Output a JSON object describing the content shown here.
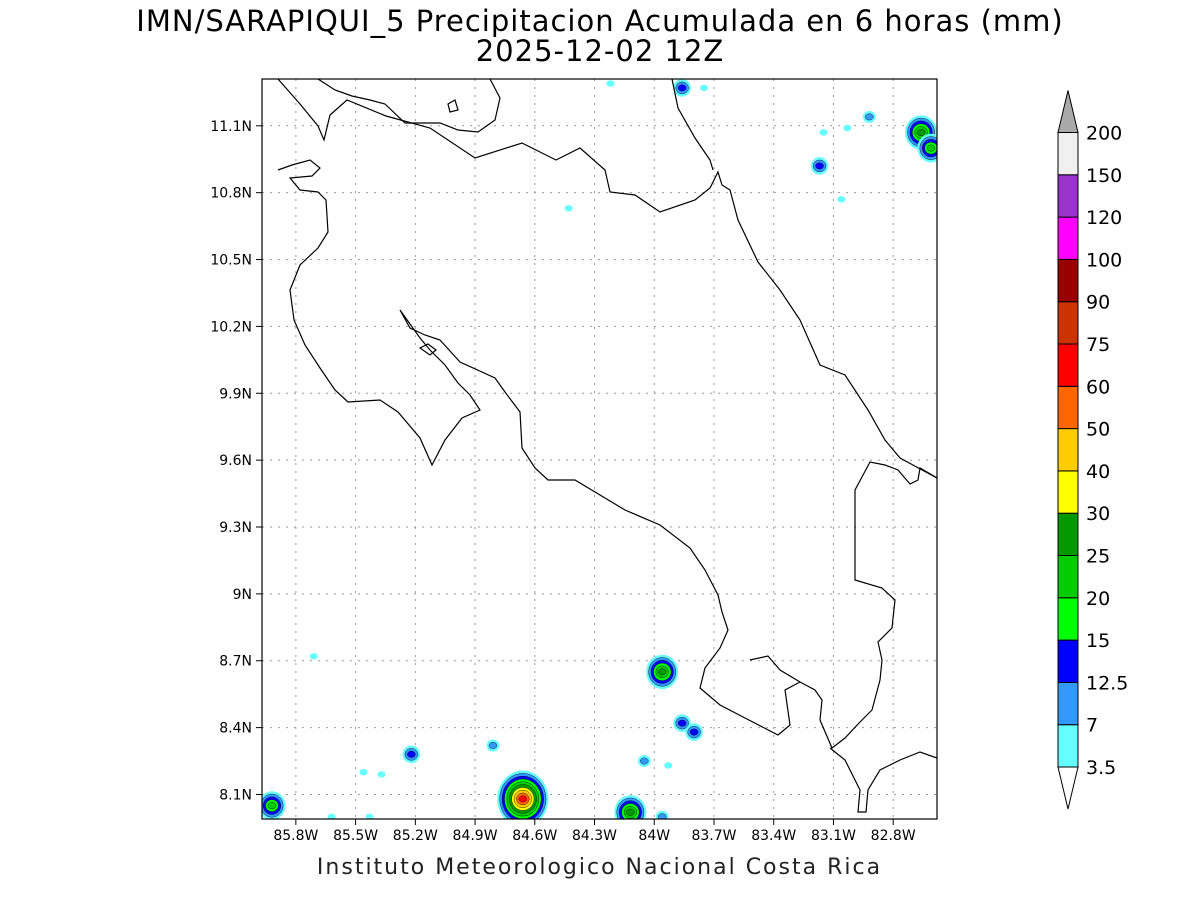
{
  "map": {
    "title": "IMN/SARAPIQUI_5 Precipitacion Acumulada en 6 horas (mm)",
    "subtitle": "2025-12-02 12Z",
    "footer": "Instituto Meteorologico Nacional Costa Rica",
    "lon_range": [
      -85.97,
      -82.58
    ],
    "lat_range": [
      7.99,
      11.31
    ],
    "x_ticks": [
      {
        "lon": -85.8,
        "label": "85.8W"
      },
      {
        "lon": -85.5,
        "label": "85.5W"
      },
      {
        "lon": -85.2,
        "label": "85.2W"
      },
      {
        "lon": -84.9,
        "label": "84.9W"
      },
      {
        "lon": -84.6,
        "label": "84.6W"
      },
      {
        "lon": -84.3,
        "label": "84.3W"
      },
      {
        "lon": -84.0,
        "label": "84W"
      },
      {
        "lon": -83.7,
        "label": "83.7W"
      },
      {
        "lon": -83.4,
        "label": "83.4W"
      },
      {
        "lon": -83.1,
        "label": "83.1W"
      },
      {
        "lon": -82.8,
        "label": "82.8W"
      }
    ],
    "y_ticks": [
      {
        "lat": 11.1,
        "label": "11.1N"
      },
      {
        "lat": 10.8,
        "label": "10.8N"
      },
      {
        "lat": 10.5,
        "label": "10.5N"
      },
      {
        "lat": 10.2,
        "label": "10.2N"
      },
      {
        "lat": 9.9,
        "label": "9.9N"
      },
      {
        "lat": 9.6,
        "label": "9.6N"
      },
      {
        "lat": 9.3,
        "label": "9.3N"
      },
      {
        "lat": 9.0,
        "label": "9N"
      },
      {
        "lat": 8.7,
        "label": "8.7N"
      },
      {
        "lat": 8.4,
        "label": "8.4N"
      },
      {
        "lat": 8.1,
        "label": "8.1N"
      }
    ],
    "grid": true
  },
  "colorbar": {
    "levels": [
      {
        "label": "3.5",
        "color": "#66ffff"
      },
      {
        "label": "7",
        "color": "#3399ff"
      },
      {
        "label": "12.5",
        "color": "#0000ff"
      },
      {
        "label": "15",
        "color": "#00ff00"
      },
      {
        "label": "20",
        "color": "#00cc00"
      },
      {
        "label": "25",
        "color": "#009900"
      },
      {
        "label": "30",
        "color": "#ffff00"
      },
      {
        "label": "40",
        "color": "#ffcc00"
      },
      {
        "label": "50",
        "color": "#ff6600"
      },
      {
        "label": "60",
        "color": "#ff0000"
      },
      {
        "label": "75",
        "color": "#cc3300"
      },
      {
        "label": "90",
        "color": "#990000"
      },
      {
        "label": "100",
        "color": "#ff00ff"
      },
      {
        "label": "120",
        "color": "#9933cc"
      },
      {
        "label": "150",
        "color": "#f0f0f0"
      },
      {
        "label": "200",
        "color": "#a9a9a9"
      }
    ]
  },
  "precip_cells": [
    {
      "lon": -84.66,
      "lat": 8.08,
      "level": 9
    },
    {
      "lon": -85.92,
      "lat": 8.05,
      "level": 4
    },
    {
      "lon": -85.22,
      "lat": 8.28,
      "level": 2
    },
    {
      "lon": -84.81,
      "lat": 8.32,
      "level": 1
    },
    {
      "lon": -83.96,
      "lat": 8.65,
      "level": 5
    },
    {
      "lon": -83.86,
      "lat": 8.42,
      "level": 2
    },
    {
      "lon": -83.8,
      "lat": 8.38,
      "level": 2
    },
    {
      "lon": -84.12,
      "lat": 8.02,
      "level": 5
    },
    {
      "lon": -83.96,
      "lat": 8.0,
      "level": 1
    },
    {
      "lon": -84.05,
      "lat": 8.25,
      "level": 1
    },
    {
      "lon": -83.93,
      "lat": 8.23,
      "level": 0
    },
    {
      "lon": -85.37,
      "lat": 8.19,
      "level": 0
    },
    {
      "lon": -85.46,
      "lat": 8.2,
      "level": 0
    },
    {
      "lon": -85.62,
      "lat": 8.0,
      "level": 0
    },
    {
      "lon": -85.43,
      "lat": 8.0,
      "level": 0
    },
    {
      "lon": -84.43,
      "lat": 10.73,
      "level": 0
    },
    {
      "lon": -83.86,
      "lat": 11.27,
      "level": 2
    },
    {
      "lon": -83.75,
      "lat": 11.27,
      "level": 0
    },
    {
      "lon": -84.22,
      "lat": 11.29,
      "level": 0
    },
    {
      "lon": -83.15,
      "lat": 11.07,
      "level": 0
    },
    {
      "lon": -83.03,
      "lat": 11.09,
      "level": 0
    },
    {
      "lon": -82.92,
      "lat": 11.14,
      "level": 1
    },
    {
      "lon": -83.17,
      "lat": 10.92,
      "level": 2
    },
    {
      "lon": -83.06,
      "lat": 10.77,
      "level": 0
    },
    {
      "lon": -82.66,
      "lat": 11.07,
      "level": 5
    },
    {
      "lon": -82.61,
      "lat": 11.0,
      "level": 4
    },
    {
      "lon": -85.71,
      "lat": 8.72,
      "level": 0
    }
  ]
}
